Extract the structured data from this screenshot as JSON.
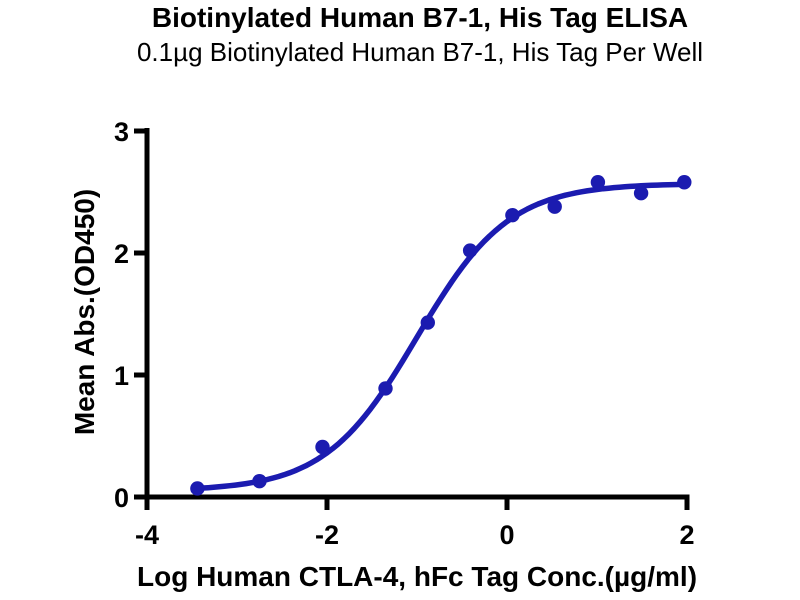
{
  "header": {
    "title": "Biotinylated Human B7-1, His Tag ELISA",
    "subtitle": "0.1µg Biotinylated Human B7-1, His Tag Per Well"
  },
  "chart_data": {
    "type": "scatter",
    "title": "Biotinylated Human B7-1, His Tag ELISA",
    "subtitle": "0.1µg Biotinylated Human B7-1, His Tag Per Well",
    "xlabel": "Log Human CTLA-4, hFc Tag Conc.(µg/ml)",
    "ylabel": "Mean Abs.(OD450)",
    "xlim": [
      -4,
      2
    ],
    "ylim": [
      0,
      3
    ],
    "x_ticks": [
      -4,
      -2,
      0,
      2
    ],
    "y_ticks": [
      0,
      1,
      2,
      3
    ],
    "grid": false,
    "legend": false,
    "points": [
      {
        "x": -3.44,
        "y": 0.07
      },
      {
        "x": -2.75,
        "y": 0.13
      },
      {
        "x": -2.05,
        "y": 0.41
      },
      {
        "x": -1.35,
        "y": 0.89
      },
      {
        "x": -0.88,
        "y": 1.43
      },
      {
        "x": -0.41,
        "y": 2.02
      },
      {
        "x": 0.06,
        "y": 2.31
      },
      {
        "x": 0.53,
        "y": 2.38
      },
      {
        "x": 1.01,
        "y": 2.58
      },
      {
        "x": 1.49,
        "y": 2.49
      },
      {
        "x": 1.97,
        "y": 2.58
      }
    ],
    "fit_curve": {
      "model": "4PL",
      "bottom": 0.05,
      "top": 2.57,
      "logEC50": -1.0,
      "hill": 0.85
    },
    "colors": {
      "curve": "#1b1bb0",
      "marker": "#1b1bb0",
      "axis": "#000000",
      "background": "#ffffff"
    }
  }
}
